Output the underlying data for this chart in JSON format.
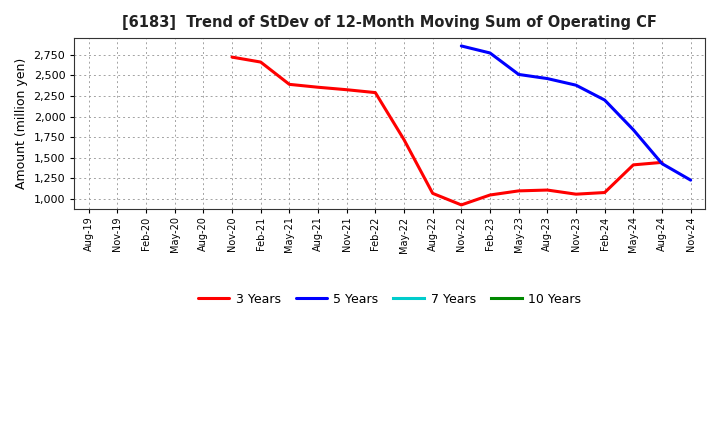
{
  "title": "[6183]  Trend of StDev of 12-Month Moving Sum of Operating CF",
  "ylabel": "Amount (million yen)",
  "background_color": "#ffffff",
  "plot_bg_color": "#ffffff",
  "grid_color": "#999999",
  "x_labels": [
    "Aug-19",
    "Nov-19",
    "Feb-20",
    "May-20",
    "Aug-20",
    "Nov-20",
    "Feb-21",
    "May-21",
    "Aug-21",
    "Nov-21",
    "Feb-22",
    "May-22",
    "Aug-22",
    "Nov-22",
    "Feb-23",
    "May-23",
    "Aug-23",
    "Nov-23",
    "Feb-24",
    "May-24",
    "Aug-24",
    "Nov-24"
  ],
  "ylim": [
    875,
    2950
  ],
  "yticks": [
    1000,
    1250,
    1500,
    1750,
    2000,
    2250,
    2500,
    2750
  ],
  "three_yr_x": [
    5,
    6,
    7,
    8,
    9,
    10,
    11,
    12,
    13,
    14,
    15,
    16,
    17,
    18,
    19,
    20
  ],
  "three_yr_y": [
    2720,
    2660,
    2390,
    2355,
    2325,
    2290,
    1720,
    1070,
    930,
    1050,
    1100,
    1110,
    1060,
    1080,
    1415,
    1445
  ],
  "five_yr_x": [
    13,
    14,
    15,
    16,
    17,
    18,
    19,
    20,
    21
  ],
  "five_yr_y": [
    2855,
    2770,
    2510,
    2460,
    2380,
    2200,
    1840,
    1430,
    1230
  ],
  "three_yr_color": "#ff0000",
  "five_yr_color": "#0000ff",
  "seven_yr_color": "#00cccc",
  "ten_yr_color": "#008800",
  "legend_labels": [
    "3 Years",
    "5 Years",
    "7 Years",
    "10 Years"
  ]
}
